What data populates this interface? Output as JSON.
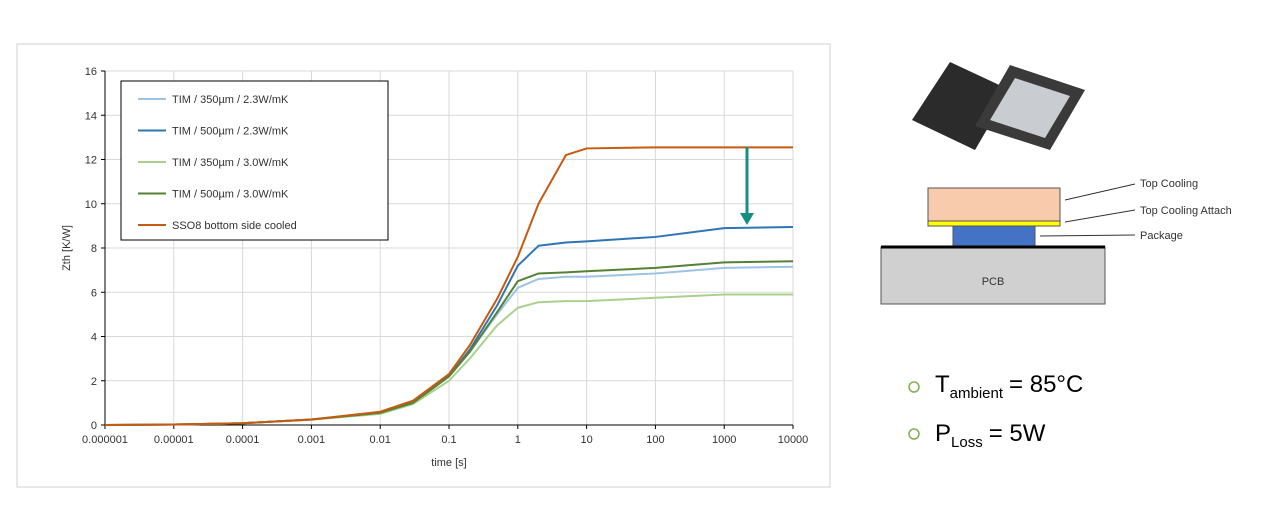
{
  "chart_data": {
    "type": "line",
    "xlabel": "time [s]",
    "ylabel": "Zth [K/W]",
    "xlog": true,
    "grid": true,
    "xlim": [
      1e-06,
      10000
    ],
    "xticks": [
      1e-06,
      1e-05,
      0.0001,
      0.001,
      0.01,
      0.1,
      1,
      10,
      100,
      1000,
      10000
    ],
    "ylim": [
      0,
      16
    ],
    "yticks": [
      0,
      2,
      4,
      6,
      8,
      10,
      12,
      14,
      16
    ],
    "x": [
      1e-06,
      1e-05,
      0.0001,
      0.001,
      0.01,
      0.03,
      0.1,
      0.2,
      0.5,
      1,
      2,
      5,
      10,
      100,
      1000,
      10000
    ],
    "series": [
      {
        "name": "TIM / 350µm / 2.3W/mK",
        "color": "#9dc3e6",
        "values": [
          0,
          0.02,
          0.08,
          0.25,
          0.55,
          1.0,
          2.2,
          3.3,
          5.0,
          6.2,
          6.6,
          6.7,
          6.7,
          6.85,
          7.1,
          7.15
        ]
      },
      {
        "name": "TIM / 500µm / 2.3W/mK",
        "color": "#2e75b6",
        "values": [
          0,
          0.02,
          0.08,
          0.25,
          0.55,
          1.0,
          2.2,
          3.4,
          5.4,
          7.2,
          8.1,
          8.25,
          8.3,
          8.5,
          8.9,
          8.95
        ]
      },
      {
        "name": "TIM / 350µm / 3.0W/mK",
        "color": "#a9d18e",
        "values": [
          0,
          0.02,
          0.08,
          0.24,
          0.5,
          0.95,
          2.0,
          3.0,
          4.5,
          5.3,
          5.55,
          5.6,
          5.6,
          5.75,
          5.9,
          5.9
        ]
      },
      {
        "name": "TIM / 500µm / 3.0W/mK",
        "color": "#548235",
        "values": [
          0,
          0.02,
          0.08,
          0.25,
          0.55,
          1.0,
          2.2,
          3.3,
          5.1,
          6.5,
          6.85,
          6.9,
          6.95,
          7.1,
          7.35,
          7.4
        ]
      },
      {
        "name": "SSO8 bottom side cooled",
        "color": "#c55a11",
        "values": [
          0,
          0.02,
          0.08,
          0.25,
          0.6,
          1.1,
          2.3,
          3.6,
          5.7,
          7.6,
          10.0,
          12.2,
          12.5,
          12.55,
          12.55,
          12.55
        ]
      }
    ]
  },
  "diagram": {
    "labels": [
      "Top Cooling",
      "Top Cooling Attach",
      "Package",
      "PCB"
    ]
  },
  "bullets": [
    {
      "main": "T",
      "sub": "ambient",
      "rest": "= 85°C"
    },
    {
      "main": "P",
      "sub": "Loss",
      "rest": "= 5W"
    }
  ]
}
